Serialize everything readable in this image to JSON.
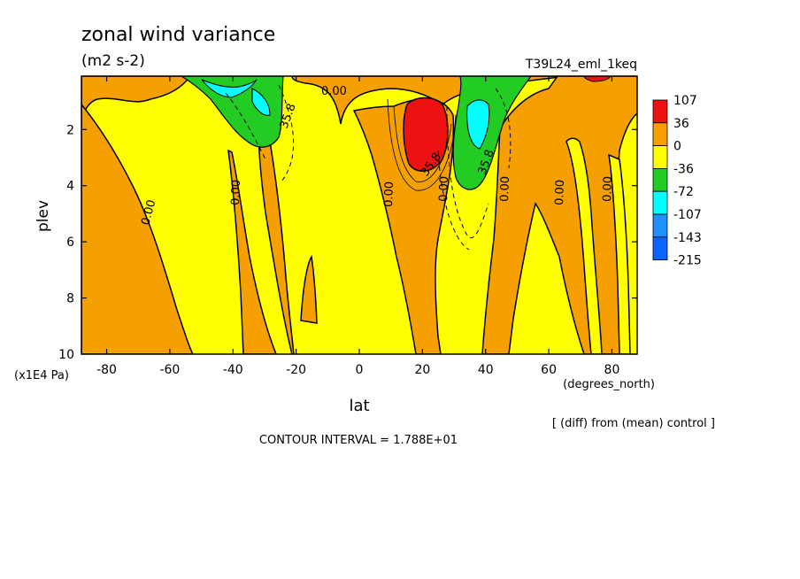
{
  "chart_data": {
    "type": "heatmap",
    "title": "zonal wind variance",
    "subtitle": "(m2 s-2)",
    "run_label": "T39L24_eml_1keq",
    "xlabel": "lat",
    "x_units": "(degrees_north)",
    "ylabel": "plev",
    "y_units": "(x1E4 Pa)",
    "x_ticks": [
      -80,
      -60,
      -40,
      -20,
      0,
      20,
      40,
      60,
      80
    ],
    "y_ticks": [
      2,
      4,
      6,
      8,
      10
    ],
    "xlim": [
      -88,
      88
    ],
    "ylim": [
      10,
      0.1
    ],
    "y_inverted": true,
    "contour_labels": [
      "0.00",
      "35.8"
    ],
    "contour_interval_text": "CONTOUR INTERVAL = 1.788E+01",
    "footnote": "[ (diff) from (mean) control ]",
    "colorbar": {
      "labels": [
        "107",
        "36",
        "0",
        "-36",
        "-72",
        "-107",
        "-143",
        "-215"
      ],
      "colors": [
        "#ee1111",
        "#f5a000",
        "#ffff00",
        "#22cc22",
        "#00ffff",
        "#1e90ff",
        "#0a64ff"
      ]
    },
    "colors": {
      "pos_high": "#ee1111",
      "pos": "#f5a000",
      "neg_small": "#ffff00",
      "neg_mid": "#22cc22",
      "neg_large": "#00ffff",
      "neg_xlarge": "#1e90ff"
    }
  }
}
